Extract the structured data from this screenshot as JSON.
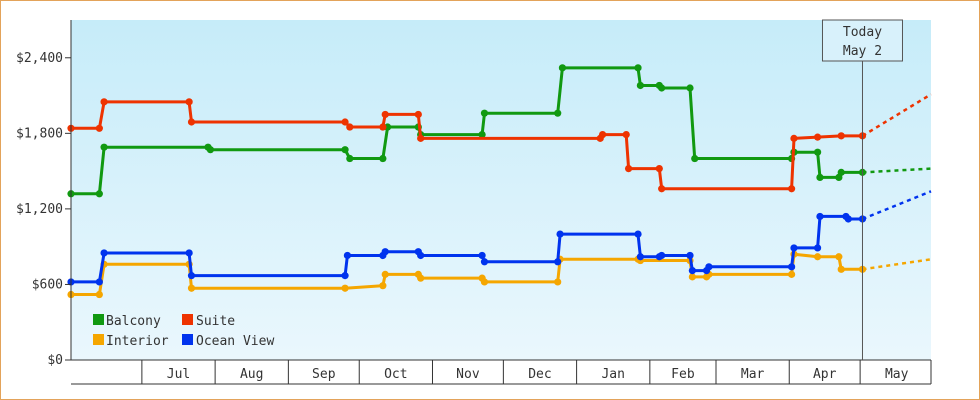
{
  "chart_data": {
    "type": "line",
    "title": "",
    "xlabel": "",
    "ylabel": "",
    "ylim": [
      0,
      2700
    ],
    "y_ticks": [
      0,
      600,
      1200,
      1800,
      2400
    ],
    "y_tick_labels": [
      "$0",
      "$600",
      "$1,200",
      "$1,800",
      "$2,400"
    ],
    "x_month_labels": [
      "Jul",
      "Aug",
      "Sep",
      "Oct",
      "Nov",
      "Dec",
      "Jan",
      "Feb",
      "Mar",
      "Apr",
      "May"
    ],
    "x_range": [
      "2024-06-01",
      "2025-05-31"
    ],
    "grid": false,
    "background": [
      "#c6ecf9",
      "#eaf7fd"
    ],
    "legend_position": "bottom-left",
    "today_marker": {
      "line1": "Today",
      "line2": "May 2",
      "date": "2025-05-02"
    },
    "series": [
      {
        "name": "Balcony",
        "color": "#119911",
        "points": [
          [
            "2024-06-01",
            1320
          ],
          [
            "2024-06-13",
            1320
          ],
          [
            "2024-06-15",
            1690
          ],
          [
            "2024-07-29",
            1690
          ],
          [
            "2024-07-30",
            1670
          ],
          [
            "2024-09-25",
            1670
          ],
          [
            "2024-09-27",
            1600
          ],
          [
            "2024-10-11",
            1600
          ],
          [
            "2024-10-13",
            1850
          ],
          [
            "2024-10-26",
            1850
          ],
          [
            "2024-10-27",
            1790
          ],
          [
            "2024-11-22",
            1790
          ],
          [
            "2024-11-23",
            1960
          ],
          [
            "2024-12-24",
            1960
          ],
          [
            "2024-12-26",
            2320
          ],
          [
            "2025-01-27",
            2320
          ],
          [
            "2025-01-28",
            2180
          ],
          [
            "2025-02-05",
            2180
          ],
          [
            "2025-02-06",
            2160
          ],
          [
            "2025-02-18",
            2160
          ],
          [
            "2025-02-20",
            1600
          ],
          [
            "2025-04-02",
            1600
          ],
          [
            "2025-04-03",
            1650
          ],
          [
            "2025-04-13",
            1650
          ],
          [
            "2025-04-14",
            1450
          ],
          [
            "2025-04-22",
            1450
          ],
          [
            "2025-04-23",
            1490
          ],
          [
            "2025-05-02",
            1490
          ]
        ],
        "projection": [
          [
            "2025-05-02",
            1490
          ],
          [
            "2025-05-31",
            1520
          ]
        ]
      },
      {
        "name": "Suite",
        "color": "#ee3300",
        "points": [
          [
            "2024-06-01",
            1840
          ],
          [
            "2024-06-13",
            1840
          ],
          [
            "2024-06-15",
            2050
          ],
          [
            "2024-07-21",
            2050
          ],
          [
            "2024-07-22",
            1890
          ],
          [
            "2024-09-25",
            1890
          ],
          [
            "2024-09-27",
            1850
          ],
          [
            "2024-10-11",
            1850
          ],
          [
            "2024-10-12",
            1950
          ],
          [
            "2024-10-26",
            1950
          ],
          [
            "2024-10-27",
            1760
          ],
          [
            "2025-01-11",
            1760
          ],
          [
            "2025-01-12",
            1790
          ],
          [
            "2025-01-22",
            1790
          ],
          [
            "2025-01-23",
            1520
          ],
          [
            "2025-02-05",
            1520
          ],
          [
            "2025-02-06",
            1360
          ],
          [
            "2025-04-02",
            1360
          ],
          [
            "2025-04-03",
            1760
          ],
          [
            "2025-04-13",
            1770
          ],
          [
            "2025-04-23",
            1780
          ],
          [
            "2025-05-02",
            1780
          ]
        ],
        "projection": [
          [
            "2025-05-02",
            1780
          ],
          [
            "2025-05-31",
            2110
          ]
        ]
      },
      {
        "name": "Interior",
        "color": "#f5a600",
        "points": [
          [
            "2024-06-01",
            520
          ],
          [
            "2024-06-13",
            520
          ],
          [
            "2024-06-15",
            760
          ],
          [
            "2024-07-21",
            760
          ],
          [
            "2024-07-22",
            570
          ],
          [
            "2024-09-25",
            570
          ],
          [
            "2024-10-11",
            590
          ],
          [
            "2024-10-12",
            680
          ],
          [
            "2024-10-26",
            680
          ],
          [
            "2024-10-27",
            650
          ],
          [
            "2024-11-22",
            650
          ],
          [
            "2024-11-23",
            620
          ],
          [
            "2024-12-24",
            620
          ],
          [
            "2024-12-25",
            800
          ],
          [
            "2025-01-27",
            800
          ],
          [
            "2025-01-28",
            790
          ],
          [
            "2025-02-18",
            790
          ],
          [
            "2025-02-19",
            660
          ],
          [
            "2025-02-25",
            660
          ],
          [
            "2025-02-26",
            680
          ],
          [
            "2025-04-02",
            680
          ],
          [
            "2025-04-03",
            840
          ],
          [
            "2025-04-13",
            820
          ],
          [
            "2025-04-22",
            820
          ],
          [
            "2025-04-23",
            720
          ],
          [
            "2025-05-02",
            720
          ]
        ],
        "projection": [
          [
            "2025-05-02",
            720
          ],
          [
            "2025-05-31",
            800
          ]
        ]
      },
      {
        "name": "Ocean View",
        "color": "#0033ee",
        "points": [
          [
            "2024-06-01",
            620
          ],
          [
            "2024-06-13",
            620
          ],
          [
            "2024-06-15",
            850
          ],
          [
            "2024-07-21",
            850
          ],
          [
            "2024-07-22",
            670
          ],
          [
            "2024-09-25",
            670
          ],
          [
            "2024-09-26",
            830
          ],
          [
            "2024-10-11",
            830
          ],
          [
            "2024-10-12",
            860
          ],
          [
            "2024-10-26",
            860
          ],
          [
            "2024-10-27",
            830
          ],
          [
            "2024-11-22",
            830
          ],
          [
            "2024-11-23",
            780
          ],
          [
            "2024-12-24",
            780
          ],
          [
            "2024-12-25",
            1000
          ],
          [
            "2025-01-27",
            1000
          ],
          [
            "2025-01-28",
            820
          ],
          [
            "2025-02-05",
            820
          ],
          [
            "2025-02-06",
            830
          ],
          [
            "2025-02-18",
            830
          ],
          [
            "2025-02-19",
            710
          ],
          [
            "2025-02-25",
            710
          ],
          [
            "2025-02-26",
            740
          ],
          [
            "2025-04-02",
            740
          ],
          [
            "2025-04-03",
            890
          ],
          [
            "2025-04-13",
            890
          ],
          [
            "2025-04-14",
            1140
          ],
          [
            "2025-04-25",
            1140
          ],
          [
            "2025-04-26",
            1120
          ],
          [
            "2025-05-02",
            1120
          ]
        ],
        "projection": [
          [
            "2025-05-02",
            1120
          ],
          [
            "2025-05-31",
            1340
          ]
        ]
      }
    ]
  }
}
